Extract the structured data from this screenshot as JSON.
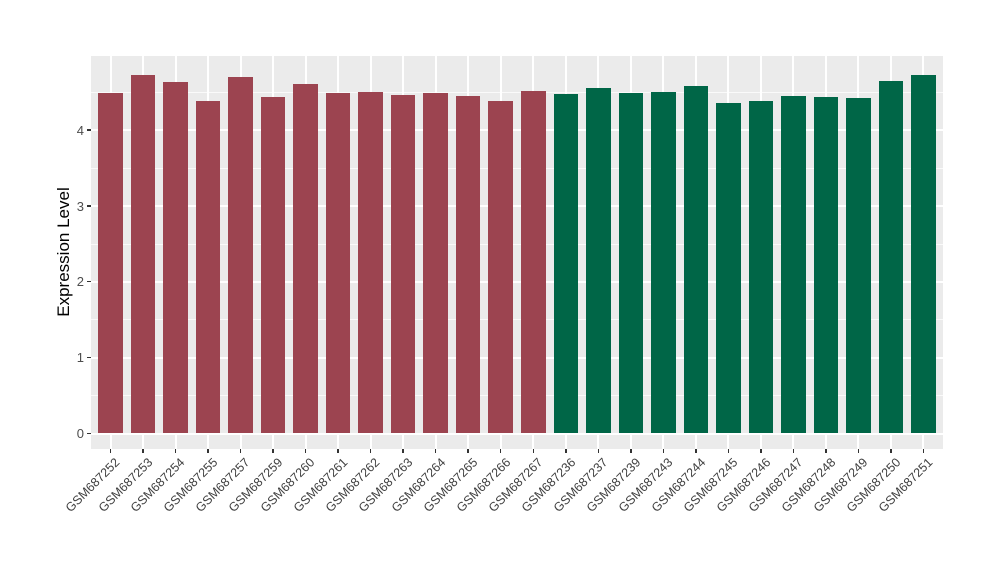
{
  "chart_data": {
    "type": "bar",
    "title": "",
    "xlabel": "",
    "ylabel": "Expression Level",
    "ylim": [
      0,
      4.97
    ],
    "yticks": [
      0,
      1,
      2,
      3,
      4
    ],
    "grid": "on",
    "legend_position": "none",
    "panel_background": "#EBEBEB",
    "gridline_color": "#FFFFFF",
    "tick_label_color": "#4D4D4D",
    "categories": [
      "GSM687252",
      "GSM687253",
      "GSM687254",
      "GSM687255",
      "GSM687257",
      "GSM687259",
      "GSM687260",
      "GSM687261",
      "GSM687262",
      "GSM687263",
      "GSM687264",
      "GSM687265",
      "GSM687266",
      "GSM687267",
      "GSM687236",
      "GSM687237",
      "GSM687239",
      "GSM687243",
      "GSM687244",
      "GSM687245",
      "GSM687246",
      "GSM687247",
      "GSM687248",
      "GSM687249",
      "GSM687250",
      "GSM687251"
    ],
    "values": [
      4.49,
      4.73,
      4.64,
      4.38,
      4.7,
      4.44,
      4.61,
      4.49,
      4.51,
      4.46,
      4.49,
      4.45,
      4.38,
      4.52,
      4.48,
      4.56,
      4.49,
      4.51,
      4.59,
      4.36,
      4.38,
      4.45,
      4.44,
      4.42,
      4.65,
      4.73
    ],
    "groups": [
      "A",
      "A",
      "A",
      "A",
      "A",
      "A",
      "A",
      "A",
      "A",
      "A",
      "A",
      "A",
      "A",
      "A",
      "B",
      "B",
      "B",
      "B",
      "B",
      "B",
      "B",
      "B",
      "B",
      "B",
      "B",
      "B"
    ],
    "group_colors": {
      "A": "#9C4450",
      "B": "#006647"
    }
  }
}
